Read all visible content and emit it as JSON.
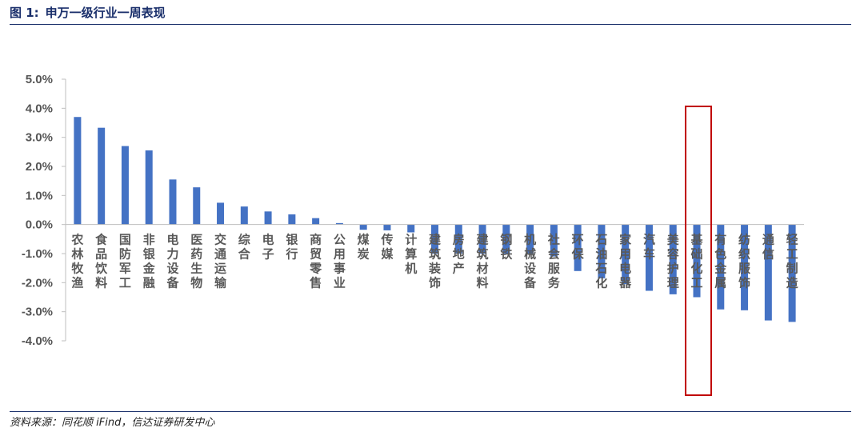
{
  "header": {
    "figure_no": "图 1:",
    "title": "申万一级行业一周表现"
  },
  "footer": {
    "source": "资料来源：同花顺 iFind，信达证券研发中心"
  },
  "colors": {
    "bar": "#4472C4",
    "axis": "#bfbfbf",
    "highlight_box": "#c00000",
    "title": "#1a2f6b"
  },
  "chart_data": {
    "type": "bar",
    "title": "申万一级行业一周表现",
    "xlabel": "",
    "ylabel": "",
    "ylim": [
      -4.0,
      5.0
    ],
    "ytick_step": 1.0,
    "yticks": [
      "5.0%",
      "4.0%",
      "3.0%",
      "2.0%",
      "1.0%",
      "0.0%",
      "-1.0%",
      "-2.0%",
      "-3.0%",
      "-4.0%"
    ],
    "unit": "%",
    "grid": false,
    "legend": "none",
    "categories": [
      "农林牧渔",
      "食品饮料",
      "国防军工",
      "非银金融",
      "电力设备",
      "医药生物",
      "交通运输",
      "综合",
      "电子",
      "银行",
      "商贸零售",
      "公用事业",
      "煤炭",
      "传媒",
      "计算机",
      "建筑装饰",
      "房地产",
      "建筑材料",
      "钢铁",
      "机械设备",
      "社会服务",
      "环保",
      "石油石化",
      "家用电器",
      "汽车",
      "美容护理",
      "基础化工",
      "有色金属",
      "纺织服饰",
      "通信",
      "轻工制造"
    ],
    "values": [
      3.7,
      3.33,
      2.7,
      2.55,
      1.55,
      1.28,
      0.75,
      0.62,
      0.45,
      0.35,
      0.22,
      0.05,
      -0.18,
      -0.2,
      -0.27,
      -1.0,
      -1.0,
      -1.0,
      -1.0,
      -1.0,
      -1.1,
      -1.6,
      -1.85,
      -2.05,
      -2.28,
      -2.4,
      -2.5,
      -2.92,
      -2.95,
      -3.3,
      -3.35
    ],
    "highlighted_category": "基础化工"
  }
}
